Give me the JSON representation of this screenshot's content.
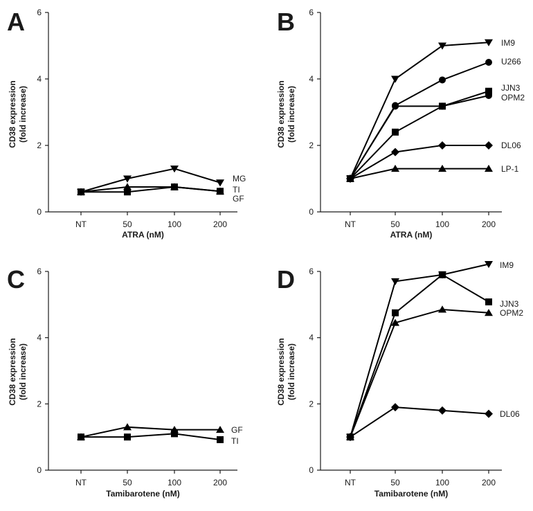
{
  "chart_data": [
    {
      "type": "line",
      "panel": "A",
      "categories": [
        "NT",
        "50",
        "100",
        "200"
      ],
      "xlabel": "ATRA (nM)",
      "ylabel": "CD38 expression",
      "ylabel2": "(fold increase)",
      "ylim": [
        0,
        6
      ],
      "yticks": [
        "0",
        "2",
        "4",
        "6"
      ],
      "series": [
        {
          "name": "MG",
          "marker": "triangle-down",
          "values": [
            0.6,
            1.0,
            1.3,
            0.88
          ]
        },
        {
          "name": "TI",
          "marker": "triangle-up",
          "values": [
            0.6,
            0.75,
            0.75,
            0.62
          ]
        },
        {
          "name": "GF",
          "marker": "square",
          "values": [
            0.6,
            0.6,
            0.75,
            0.62
          ]
        }
      ]
    },
    {
      "type": "line",
      "panel": "B",
      "categories": [
        "NT",
        "50",
        "100",
        "200"
      ],
      "xlabel": "ATRA (nM)",
      "ylabel": "CD38 expression",
      "ylabel2": "(fold increase)",
      "ylim": [
        0,
        6
      ],
      "yticks": [
        "0",
        "2",
        "4",
        "6"
      ],
      "series": [
        {
          "name": "IM9",
          "marker": "triangle-down",
          "values": [
            1.0,
            4.0,
            5.0,
            5.1
          ]
        },
        {
          "name": "U266",
          "marker": "circle",
          "values": [
            1.0,
            3.2,
            3.97,
            4.5
          ]
        },
        {
          "name": "JJN3",
          "marker": "square",
          "values": [
            1.0,
            2.4,
            3.18,
            3.63
          ]
        },
        {
          "name": "OPM2",
          "marker": "circle",
          "values": [
            1.0,
            3.18,
            3.18,
            3.5
          ]
        },
        {
          "name": "DL06",
          "marker": "diamond",
          "values": [
            1.0,
            1.8,
            2.0,
            2.0
          ]
        },
        {
          "name": "LP-1",
          "marker": "triangle-up",
          "values": [
            1.0,
            1.3,
            1.3,
            1.3
          ]
        }
      ]
    },
    {
      "type": "line",
      "panel": "C",
      "categories": [
        "NT",
        "50",
        "100",
        "200"
      ],
      "xlabel": "Tamibarotene (nM)",
      "ylabel": "CD38 expression",
      "ylabel2": "(fold increase)",
      "ylim": [
        0,
        6
      ],
      "yticks": [
        "0",
        "2",
        "4",
        "6"
      ],
      "series": [
        {
          "name": "GF",
          "marker": "triangle-up",
          "values": [
            1.0,
            1.3,
            1.22,
            1.22
          ]
        },
        {
          "name": "TI",
          "marker": "square",
          "values": [
            1.0,
            1.0,
            1.1,
            0.92
          ]
        }
      ]
    },
    {
      "type": "line",
      "panel": "D",
      "categories": [
        "NT",
        "50",
        "100",
        "200"
      ],
      "xlabel": "Tamibarotene (nM)",
      "ylabel": "CD38 expression",
      "ylabel2": "(fold increase)",
      "ylim": [
        0,
        6
      ],
      "yticks": [
        "0",
        "2",
        "4",
        "6"
      ],
      "series": [
        {
          "name": "IM9",
          "marker": "triangle-down",
          "values": [
            1.0,
            5.7,
            5.9,
            6.22
          ]
        },
        {
          "name": "JJN3",
          "marker": "square",
          "values": [
            1.0,
            4.75,
            5.9,
            5.08
          ]
        },
        {
          "name": "OPM2",
          "marker": "triangle-up",
          "values": [
            1.0,
            4.45,
            4.85,
            4.75
          ]
        },
        {
          "name": "DL06",
          "marker": "diamond",
          "values": [
            1.0,
            1.9,
            1.8,
            1.7
          ]
        }
      ]
    }
  ]
}
